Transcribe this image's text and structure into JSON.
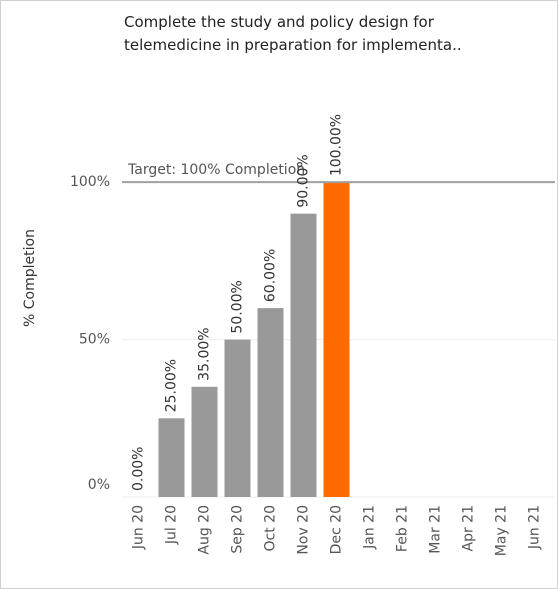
{
  "chart_data": {
    "type": "bar",
    "title": [
      "Complete the study and policy design for",
      "telemedicine in preparation for implementa.."
    ],
    "y_label": "% Completion",
    "categories": [
      "Jun 20",
      "Jul 20",
      "Aug 20",
      "Sep 20",
      "Oct 20",
      "Nov 20",
      "Dec 20",
      "Jan 21",
      "Feb 21",
      "Mar 21",
      "Apr 21",
      "May 21",
      "Jun 21"
    ],
    "values": [
      0,
      25,
      35,
      50,
      60,
      90,
      100,
      null,
      null,
      null,
      null,
      null,
      null
    ],
    "value_labels": [
      "0.00%",
      "25.00%",
      "35.00%",
      "50.00%",
      "60.00%",
      "90.00%",
      "100.00%",
      null,
      null,
      null,
      null,
      null,
      null
    ],
    "colors": [
      "#999999",
      "#999999",
      "#999999",
      "#999999",
      "#999999",
      "#999999",
      "#ff6a00",
      "#999999",
      "#999999",
      "#999999",
      "#999999",
      "#999999",
      "#999999"
    ],
    "ylim": [
      0,
      135
    ],
    "yticks": [
      {
        "value": 0,
        "label": "0%"
      },
      {
        "value": 50,
        "label": "50%"
      },
      {
        "value": 100,
        "label": "100%"
      }
    ],
    "grid": true,
    "reference_line": {
      "value": 100,
      "label": "Target: 100% Completion",
      "color": "#a0a0a0"
    }
  }
}
